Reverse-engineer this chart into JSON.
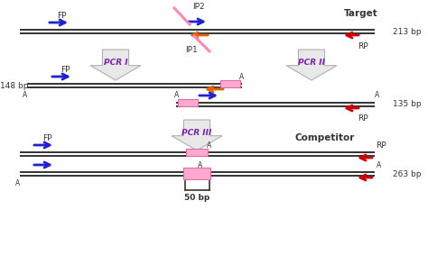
{
  "background_color": "#ffffff",
  "title_text": "Target",
  "competitor_text": "Competitor",
  "pcr1_text": "PCR I",
  "pcr2_text": "PCR II",
  "pcr3_text": "PCR III",
  "bp_213": "213 bp",
  "bp_148": "148 bp",
  "bp_135": "135 bp",
  "bp_263": "263 bp",
  "bp_50": "50 bp",
  "blue_color": "#2222cc",
  "red_color": "#cc0000",
  "orange_color": "#dd6600",
  "pink_color": "#ff88bb",
  "pink_rect_face": "#ffaacc",
  "pink_rect_edge": "#dd66aa",
  "line_color": "#333333",
  "purple_color": "#7722aa",
  "arrow_lw": 2.0,
  "line_lw": 1.4
}
